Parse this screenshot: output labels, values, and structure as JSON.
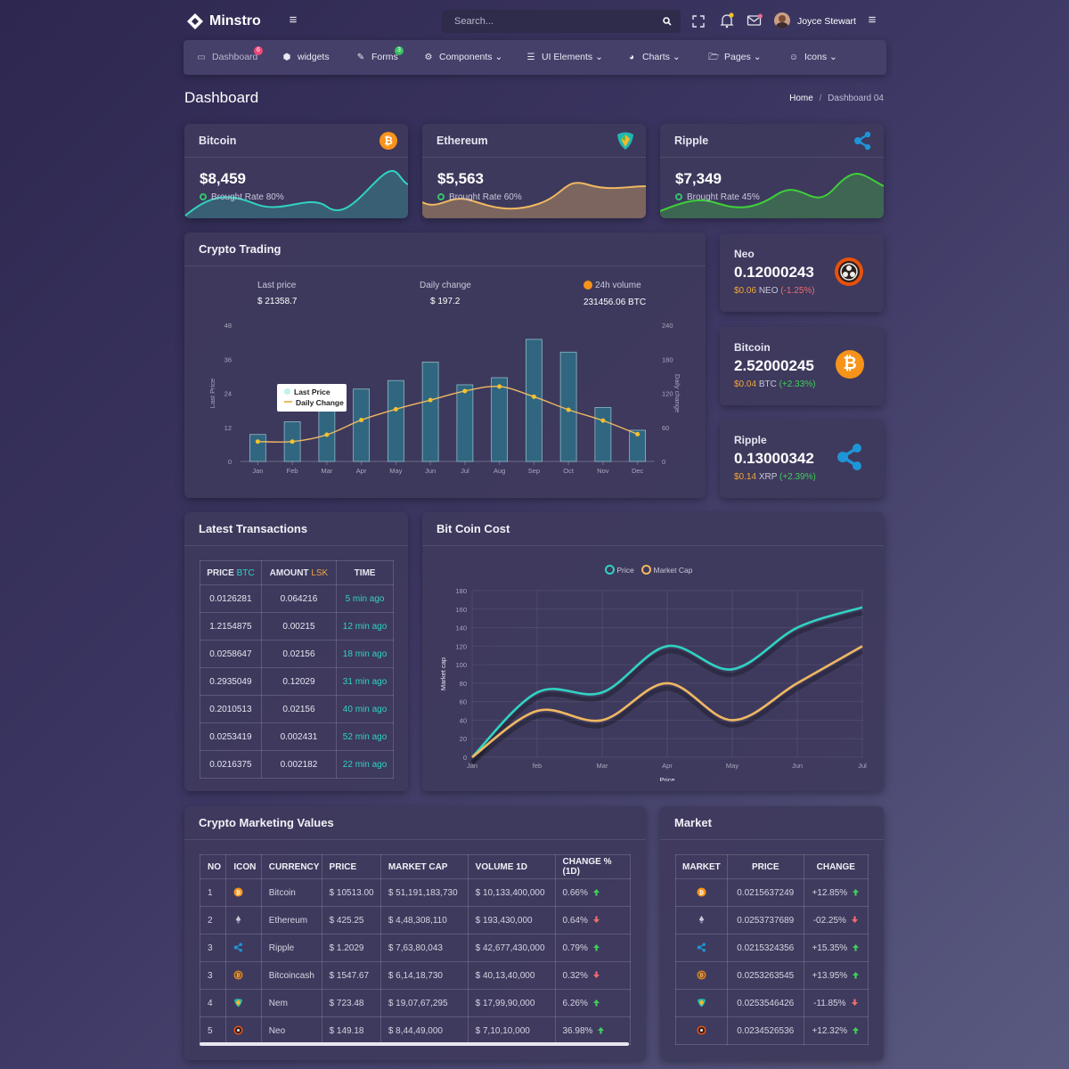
{
  "app": {
    "name": "Minstro"
  },
  "search": {
    "placeholder": "Search..."
  },
  "user": {
    "name": "Joyce Stewart"
  },
  "nav": {
    "items": [
      {
        "label": "Dashboard",
        "badge": "6"
      },
      {
        "label": "widgets"
      },
      {
        "label": "Forms",
        "badge": "3"
      },
      {
        "label": "Components"
      },
      {
        "label": "UI Elements"
      },
      {
        "label": "Charts"
      },
      {
        "label": "Pages"
      },
      {
        "label": "Icons"
      }
    ]
  },
  "page": {
    "title": "Dashboard",
    "breadcrumb_home": "Home",
    "breadcrumb_current": "Dashboard 04"
  },
  "top_cards": [
    {
      "name": "Bitcoin",
      "value": "$8,459",
      "rate": "Brought Rate 80%",
      "color": "#31d2c1",
      "icon": "bitcoin-icon"
    },
    {
      "name": "Ethereum",
      "value": "$5,563",
      "rate": "Brought Rate 60%",
      "color": "#f0b860",
      "icon": "nem-icon"
    },
    {
      "name": "Ripple",
      "value": "$7,349",
      "rate": "Brought Rate 45%",
      "color": "#3fcf3a",
      "icon": "ripple-icon"
    }
  ],
  "trading": {
    "title": "Crypto Trading",
    "last_price_label": "Last price",
    "last_price": "$ 21358.7",
    "daily_change_label": "Daily change",
    "daily_change": "$ 197.2",
    "volume_label": "24h volume",
    "volume": "231456.06 BTC",
    "legend_a": "Last Price",
    "legend_b": "Daily Change"
  },
  "side_cards": [
    {
      "name": "Neo",
      "value": "0.12000243",
      "price": "$0.06",
      "symbol": "NEO",
      "change": "(-1.25%)",
      "up": false,
      "icon": "neo-icon"
    },
    {
      "name": "Bitcoin",
      "value": "2.52000245",
      "price": "$0.04",
      "symbol": "BTC",
      "change": "(+2.33%)",
      "up": true,
      "icon": "bitcoin-icon"
    },
    {
      "name": "Ripple",
      "value": "0.13000342",
      "price": "$0.14",
      "symbol": "XRP",
      "change": "(+2.39%)",
      "up": true,
      "icon": "ripple-icon"
    }
  ],
  "transactions": {
    "title": "Latest Transactions",
    "headers": {
      "price": "PRICE",
      "price_unit": "BTC",
      "amount": "AMOUNT",
      "amount_unit": "LSK",
      "time": "TIME"
    },
    "rows": [
      [
        "0.0126281",
        "0.064216",
        "5 min ago"
      ],
      [
        "1.2154875",
        "0.00215",
        "12 min ago"
      ],
      [
        "0.0258647",
        "0.02156",
        "18 min ago"
      ],
      [
        "0.2935049",
        "0.12029",
        "31 min ago"
      ],
      [
        "0.2010513",
        "0.02156",
        "40 min ago"
      ],
      [
        "0.0253419",
        "0.002431",
        "52 min ago"
      ],
      [
        "0.0216375",
        "0.002182",
        "22 min ago"
      ]
    ]
  },
  "bitcoin_cost": {
    "title": "Bit Coin Cost",
    "legend_a": "Price",
    "legend_b": "Market Cap"
  },
  "marketing": {
    "title": "Crypto Marketing Values",
    "headers": [
      "NO",
      "ICON",
      "CURRENCY",
      "PRICE",
      "MARKET CAP",
      "VOLUME 1D",
      "CHANGE % (1D)"
    ],
    "rows": [
      {
        "no": "1",
        "icon": "bitcoin-icon",
        "currency": "Bitcoin",
        "price": "$ 10513.00",
        "cap": "$ 51,191,183,730",
        "volume": "$ 10,133,400,000",
        "change": "0.66%",
        "up": true
      },
      {
        "no": "2",
        "icon": "ethereum-icon",
        "currency": "Ethereum",
        "price": "$ 425.25",
        "cap": "$ 4,48,308,110",
        "volume": "$ 193,430,000",
        "change": "0.64%",
        "up": false
      },
      {
        "no": "3",
        "icon": "ripple-icon",
        "currency": "Ripple",
        "price": "$ 1.2029",
        "cap": "$ 7,63,80,043",
        "volume": "$ 42,677,430,000",
        "change": "0.79%",
        "up": true
      },
      {
        "no": "3",
        "icon": "bitcoincash-icon",
        "currency": "Bitcoincash",
        "price": "$ 1547.67",
        "cap": "$ 6,14,18,730",
        "volume": "$ 40,13,40,000",
        "change": "0.32%",
        "up": false
      },
      {
        "no": "4",
        "icon": "nem-icon",
        "currency": "Nem",
        "price": "$ 723.48",
        "cap": "$ 19,07,67,295",
        "volume": "$ 17,99,90,000",
        "change": "6.26%",
        "up": true
      },
      {
        "no": "5",
        "icon": "neo-icon",
        "currency": "Neo",
        "price": "$ 149.18",
        "cap": "$ 8,44,49,000",
        "volume": "$ 7,10,10,000",
        "change": "36.98%",
        "up": true
      }
    ]
  },
  "market": {
    "title": "Market",
    "headers": [
      "MARKET",
      "PRICE",
      "CHANGE"
    ],
    "rows": [
      {
        "icon": "bitcoin-icon",
        "price": "0.0215637249",
        "change": "+12.85%",
        "up": true
      },
      {
        "icon": "ethereum-icon",
        "price": "0.0253737689",
        "change": "-02.25%",
        "up": false
      },
      {
        "icon": "ripple-icon",
        "price": "0.0215324356",
        "change": "+15.35%",
        "up": true
      },
      {
        "icon": "bitcoincash-icon",
        "price": "0.0253263545",
        "change": "+13.95%",
        "up": true
      },
      {
        "icon": "nem-icon",
        "price": "0.0253546426",
        "change": "-11.85%",
        "up": false
      },
      {
        "icon": "neo-icon",
        "price": "0.0234526536",
        "change": "+12.32%",
        "up": true
      }
    ]
  },
  "chart_data": [
    {
      "type": "bar",
      "categories": [
        "Jan",
        "Feb",
        "Mar",
        "Apr",
        "May",
        "Jun",
        "Jul",
        "Aug",
        "Sep",
        "Oct",
        "Nov",
        "Dec"
      ],
      "series": [
        {
          "name": "Last Price",
          "type": "bar",
          "axis": "left",
          "values": [
            9.5,
            14,
            18,
            25.5,
            28.5,
            35,
            27,
            29.5,
            43,
            38.5,
            19,
            11
          ]
        },
        {
          "name": "Daily Change",
          "type": "line",
          "axis": "right",
          "values": [
            35,
            35,
            47,
            73,
            92,
            108,
            124,
            132,
            114,
            91,
            72,
            48
          ]
        }
      ],
      "ylabel": "Last Price",
      "ylim": [
        0,
        48
      ],
      "yticks": [
        0,
        12,
        24,
        36,
        48
      ],
      "y2label": "Daily change",
      "y2lim": [
        0,
        240
      ],
      "y2ticks": [
        0,
        60,
        120,
        180,
        240
      ],
      "bar_color": "#2f6f86",
      "line_color": "#f0b860"
    },
    {
      "type": "line",
      "categories": [
        "Jan",
        "feb",
        "Mar",
        "Apr",
        "May",
        "Jun",
        "Jul"
      ],
      "series": [
        {
          "name": "Price",
          "color": "#31d2c1",
          "values": [
            0,
            70,
            70,
            120,
            95,
            140,
            162
          ]
        },
        {
          "name": "Market Cap",
          "color": "#f0b860",
          "values": [
            0,
            50,
            40,
            80,
            40,
            80,
            120
          ]
        }
      ],
      "xlabel": "Price",
      "ylabel": "Market cap",
      "ylim": [
        0,
        180
      ],
      "yticks": [
        0,
        20,
        40,
        60,
        80,
        100,
        120,
        140,
        160,
        180
      ],
      "grid": true,
      "legend": "top"
    }
  ]
}
